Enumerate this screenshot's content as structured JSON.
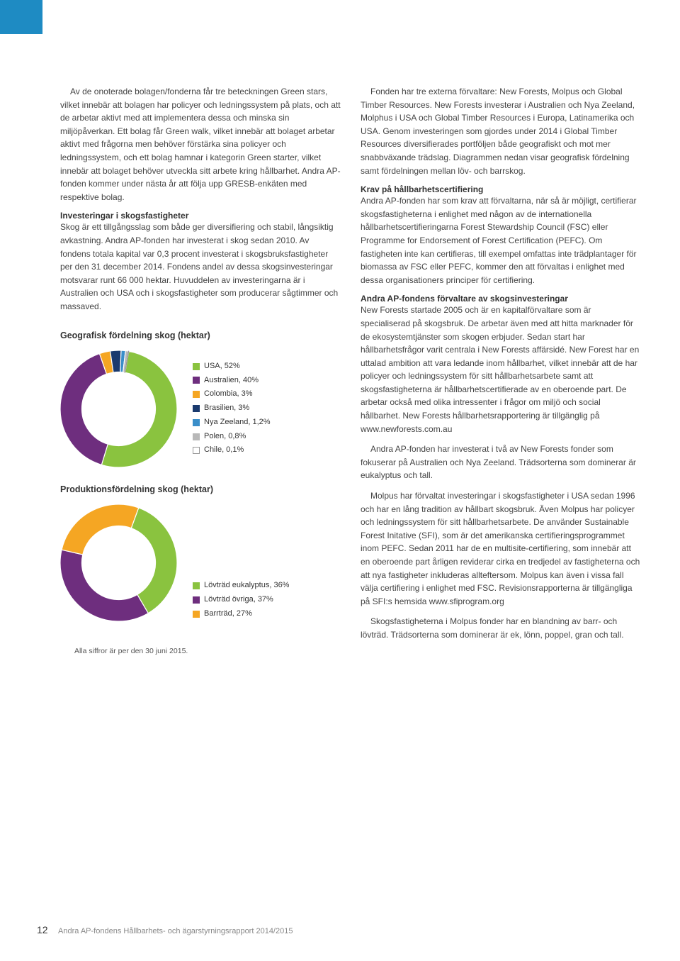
{
  "left_col": {
    "p1": "Av de onoterade bolagen/fonderna får tre beteckningen Green stars, vilket innebär att bolagen har policyer och ledningssystem på plats, och att de arbetar aktivt med att implementera dessa och minska sin miljöpåverkan. Ett bolag får Green walk, vilket innebär att bolaget arbetar aktivt med frågorna men behöver förstärka sina policyer och ledningssystem, och ett bolag hamnar i kategorin Green starter, vilket innebär att bolaget behöver utveckla sitt arbete kring hållbarhet. Andra AP-fonden kommer under nästa år att följa upp GRESB-enkäten med respektive bolag.",
    "h1": "Investeringar i skogsfastigheter",
    "p2": "Skog är ett tillgångsslag som både ger diversifiering och stabil, långsiktig avkastning. Andra AP-fonden har investerat i skog sedan 2010. Av fondens totala kapital var 0,3 procent investerat i skogsbruksfastigheter per den 31 december 2014. Fondens andel av dessa skogsinvesteringar motsvarar runt 66 000 hektar. Huvuddelen av investeringarna är i Australien och USA och i skogsfastigheter som producerar sågtimmer och massaved.",
    "chart1": {
      "title": "Geografisk fördelning skog (hektar)",
      "type": "donut",
      "size": 165,
      "inner": 52,
      "colors": {
        "usa": "#8ac33f",
        "australien": "#6e2e7e",
        "colombia": "#f5a623",
        "brasilien": "#1a3a6e",
        "nyazeeland": "#3a8ec9",
        "polen": "#b8b8b8",
        "chile": "#ffffff"
      },
      "items": [
        {
          "label": "USA, 52%",
          "key": "usa",
          "value": 52
        },
        {
          "label": "Australien, 40%",
          "key": "australien",
          "value": 40
        },
        {
          "label": "Colombia, 3%",
          "key": "colombia",
          "value": 3
        },
        {
          "label": "Brasilien, 3%",
          "key": "brasilien",
          "value": 3
        },
        {
          "label": "Nya Zeeland, 1,2%",
          "key": "nyazeeland",
          "value": 1.2
        },
        {
          "label": "Polen, 0,8%",
          "key": "polen",
          "value": 0.8
        },
        {
          "label": "Chile, 0,1%",
          "key": "chile",
          "value": 0.1,
          "hollow": true
        }
      ]
    },
    "chart2": {
      "title": "Produktionsfördelning skog (hektar)",
      "type": "donut",
      "size": 165,
      "inner": 52,
      "colors": {
        "euk": "#8ac33f",
        "ovr": "#6e2e7e",
        "barr": "#f5a623"
      },
      "items": [
        {
          "label": "Lövträd eukalyptus, 36%",
          "key": "euk",
          "value": 36
        },
        {
          "label": "Lövträd övriga, 37%",
          "key": "ovr",
          "value": 37
        },
        {
          "label": "Barrträd, 27%",
          "key": "barr",
          "value": 27
        }
      ]
    },
    "footnote": "Alla siffror är per den 30 juni 2015."
  },
  "right_col": {
    "p1": "Fonden har tre externa förvaltare: New Forests, Molpus och Global Timber Resources. New Forests investerar i Australien och Nya Zeeland, Molphus i USA och Global Timber Resources i Europa, Latinamerika och USA. Genom investeringen som gjordes under 2014 i Global Timber Resources diversifierades portföljen både geografiskt och mot mer snabbväxande trädslag. Diagrammen nedan visar geografisk fördelning samt fördelningen mellan löv- och barrskog.",
    "h1": "Krav på hållbarhetscertifiering",
    "p2": "Andra AP-fonden har som krav att förvaltarna, när så är möjligt, certifierar skogsfastigheterna i enlighet med någon av de internationella hållbarhetscertifieringarna Forest Stewardship Council (FSC) eller Programme for Endorsement of Forest Certification (PEFC). Om fastigheten inte kan certifieras, till exempel omfattas inte trädplantager för biomassa av FSC eller PEFC, kommer den att förvaltas i enlighet med dessa organisationers principer för certifiering.",
    "h2": "Andra AP-fondens förvaltare av skogsinvesteringar",
    "p3": "New Forests startade 2005 och är en kapitalförvaltare som är specialiserad på skogsbruk. De arbetar även med att hitta marknader för de ekosystemtjänster som skogen erbjuder. Sedan start har hållbarhetsfrågor varit centrala i New Forests affärsidé. New Forest har en uttalad ambition att vara ledande inom hållbarhet, vilket innebär att de har policyer och ledningssystem för sitt hållbarhetsarbete samt att skogsfastigheterna är hållbarhetscertifierade av en oberoende part. De arbetar också med olika intressenter i frågor om miljö och social hållbarhet. New Forests hållbarhetsrapportering är tillgänglig på www.newforests.com.au",
    "p4": "Andra AP-fonden har investerat i två av New Forests fonder som fokuserar på Australien och Nya Zeeland. Trädsorterna som dominerar är eukalyptus och tall.",
    "p5": "Molpus har förvaltat investeringar i skogsfastigheter i USA sedan 1996 och har en lång tradition av hållbart skogsbruk. Även Molpus har policyer och ledningssystem för sitt hållbarhetsarbete. De använder Sustainable Forest Initative (SFI), som är det amerikanska certifieringsprogrammet inom PEFC. Sedan 2011 har de en multisite-certifiering, som innebär att en oberoende part årligen reviderar cirka en tredjedel av fastigheterna och att nya fastigheter inkluderas allteftersom. Molpus kan även i vissa fall välja certifiering i enlighet med FSC. Revisionsrapporterna är tillgängliga på SFI:s hemsida www.sfiprogram.org",
    "p6": "Skogsfastigheterna i Molpus fonder har en blandning av barr- och lövträd. Trädsorterna som dominerar är ek, lönn, poppel, gran och tall."
  },
  "footer": {
    "page": "12",
    "text": "Andra AP-fondens Hållbarhets- och ägarstyrningsrapport 2014/2015"
  }
}
